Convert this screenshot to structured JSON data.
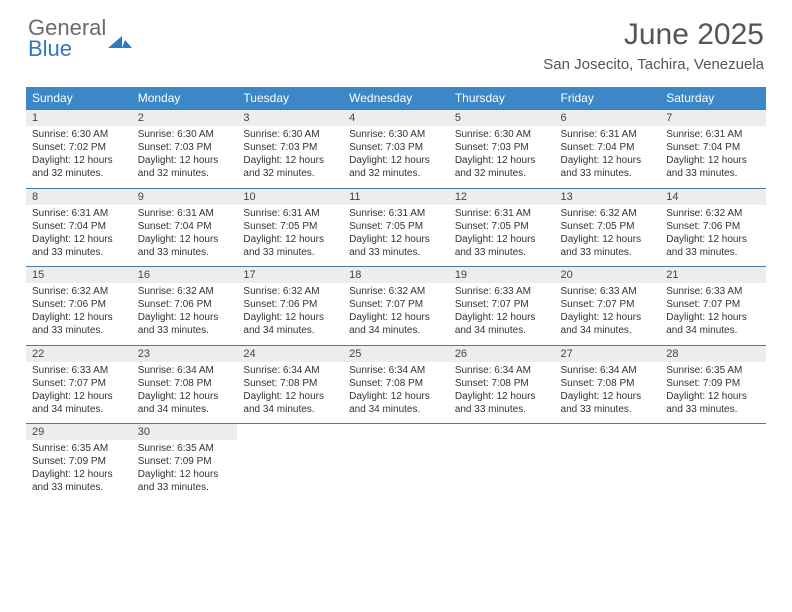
{
  "brand": {
    "line1": "General",
    "line2": "Blue",
    "text_color": "#6b6b6b",
    "accent_color": "#2f79c2"
  },
  "title": "June 2025",
  "subtitle": "San Josecito, Tachira, Venezuela",
  "colors": {
    "header_bg": "#3b87c8",
    "header_fg": "#ffffff",
    "daynum_bg": "#eceded",
    "rule": "#4a7ba8",
    "body_fg": "#333333"
  },
  "day_headers": [
    "Sunday",
    "Monday",
    "Tuesday",
    "Wednesday",
    "Thursday",
    "Friday",
    "Saturday"
  ],
  "weeks": [
    [
      {
        "n": "1",
        "sr": "6:30 AM",
        "ss": "7:02 PM",
        "dl": "12 hours and 32 minutes."
      },
      {
        "n": "2",
        "sr": "6:30 AM",
        "ss": "7:03 PM",
        "dl": "12 hours and 32 minutes."
      },
      {
        "n": "3",
        "sr": "6:30 AM",
        "ss": "7:03 PM",
        "dl": "12 hours and 32 minutes."
      },
      {
        "n": "4",
        "sr": "6:30 AM",
        "ss": "7:03 PM",
        "dl": "12 hours and 32 minutes."
      },
      {
        "n": "5",
        "sr": "6:30 AM",
        "ss": "7:03 PM",
        "dl": "12 hours and 32 minutes."
      },
      {
        "n": "6",
        "sr": "6:31 AM",
        "ss": "7:04 PM",
        "dl": "12 hours and 33 minutes."
      },
      {
        "n": "7",
        "sr": "6:31 AM",
        "ss": "7:04 PM",
        "dl": "12 hours and 33 minutes."
      }
    ],
    [
      {
        "n": "8",
        "sr": "6:31 AM",
        "ss": "7:04 PM",
        "dl": "12 hours and 33 minutes."
      },
      {
        "n": "9",
        "sr": "6:31 AM",
        "ss": "7:04 PM",
        "dl": "12 hours and 33 minutes."
      },
      {
        "n": "10",
        "sr": "6:31 AM",
        "ss": "7:05 PM",
        "dl": "12 hours and 33 minutes."
      },
      {
        "n": "11",
        "sr": "6:31 AM",
        "ss": "7:05 PM",
        "dl": "12 hours and 33 minutes."
      },
      {
        "n": "12",
        "sr": "6:31 AM",
        "ss": "7:05 PM",
        "dl": "12 hours and 33 minutes."
      },
      {
        "n": "13",
        "sr": "6:32 AM",
        "ss": "7:05 PM",
        "dl": "12 hours and 33 minutes."
      },
      {
        "n": "14",
        "sr": "6:32 AM",
        "ss": "7:06 PM",
        "dl": "12 hours and 33 minutes."
      }
    ],
    [
      {
        "n": "15",
        "sr": "6:32 AM",
        "ss": "7:06 PM",
        "dl": "12 hours and 33 minutes."
      },
      {
        "n": "16",
        "sr": "6:32 AM",
        "ss": "7:06 PM",
        "dl": "12 hours and 33 minutes."
      },
      {
        "n": "17",
        "sr": "6:32 AM",
        "ss": "7:06 PM",
        "dl": "12 hours and 34 minutes."
      },
      {
        "n": "18",
        "sr": "6:32 AM",
        "ss": "7:07 PM",
        "dl": "12 hours and 34 minutes."
      },
      {
        "n": "19",
        "sr": "6:33 AM",
        "ss": "7:07 PM",
        "dl": "12 hours and 34 minutes."
      },
      {
        "n": "20",
        "sr": "6:33 AM",
        "ss": "7:07 PM",
        "dl": "12 hours and 34 minutes."
      },
      {
        "n": "21",
        "sr": "6:33 AM",
        "ss": "7:07 PM",
        "dl": "12 hours and 34 minutes."
      }
    ],
    [
      {
        "n": "22",
        "sr": "6:33 AM",
        "ss": "7:07 PM",
        "dl": "12 hours and 34 minutes."
      },
      {
        "n": "23",
        "sr": "6:34 AM",
        "ss": "7:08 PM",
        "dl": "12 hours and 34 minutes."
      },
      {
        "n": "24",
        "sr": "6:34 AM",
        "ss": "7:08 PM",
        "dl": "12 hours and 34 minutes."
      },
      {
        "n": "25",
        "sr": "6:34 AM",
        "ss": "7:08 PM",
        "dl": "12 hours and 34 minutes."
      },
      {
        "n": "26",
        "sr": "6:34 AM",
        "ss": "7:08 PM",
        "dl": "12 hours and 33 minutes."
      },
      {
        "n": "27",
        "sr": "6:34 AM",
        "ss": "7:08 PM",
        "dl": "12 hours and 33 minutes."
      },
      {
        "n": "28",
        "sr": "6:35 AM",
        "ss": "7:09 PM",
        "dl": "12 hours and 33 minutes."
      }
    ],
    [
      {
        "n": "29",
        "sr": "6:35 AM",
        "ss": "7:09 PM",
        "dl": "12 hours and 33 minutes."
      },
      {
        "n": "30",
        "sr": "6:35 AM",
        "ss": "7:09 PM",
        "dl": "12 hours and 33 minutes."
      },
      null,
      null,
      null,
      null,
      null
    ]
  ],
  "labels": {
    "sunrise": "Sunrise:",
    "sunset": "Sunset:",
    "daylight": "Daylight:"
  }
}
